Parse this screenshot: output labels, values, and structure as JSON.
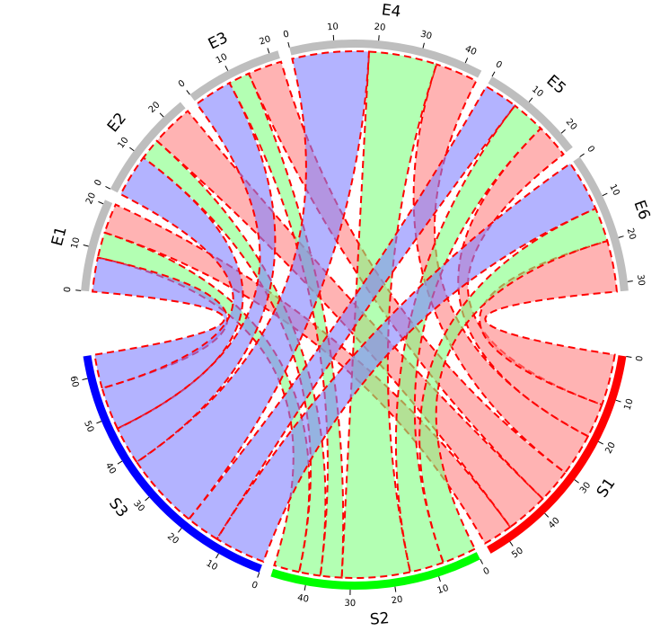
{
  "chart_data": {
    "type": "chord",
    "columns": [
      {
        "name": "E1",
        "color": "#bebebe",
        "ticks": [
          0,
          10,
          20
        ]
      },
      {
        "name": "E2",
        "color": "#bebebe",
        "ticks": [
          0,
          10,
          20
        ]
      },
      {
        "name": "E3",
        "color": "#bebebe",
        "ticks": [
          0,
          10,
          20
        ]
      },
      {
        "name": "E4",
        "color": "#bebebe",
        "ticks": [
          0,
          10,
          20,
          30,
          40
        ]
      },
      {
        "name": "E5",
        "color": "#bebebe",
        "ticks": [
          0,
          10,
          20
        ]
      },
      {
        "name": "E6",
        "color": "#bebebe",
        "ticks": [
          0,
          10,
          20,
          30
        ]
      }
    ],
    "rows": [
      {
        "name": "S1",
        "color": "#ff0000",
        "chord_color": "#ff8080",
        "ticks": [
          0,
          10,
          20,
          30,
          40,
          50
        ]
      },
      {
        "name": "S2",
        "color": "#00ff00",
        "chord_color": "#80ff80",
        "ticks": [
          0,
          10,
          20,
          30,
          40
        ]
      },
      {
        "name": "S3",
        "color": "#0000ff",
        "chord_color": "#8080ff",
        "ticks": [
          0,
          10,
          20,
          30,
          40,
          50,
          60
        ]
      }
    ],
    "matrix": [
      [
        7,
        10,
        8,
        10,
        8,
        12
      ],
      [
        6,
        5,
        5,
        16,
        8,
        8
      ],
      [
        8,
        10,
        9,
        18,
        8,
        12
      ]
    ],
    "chord_border": "#ff0000",
    "chord_border_dashed": true
  }
}
